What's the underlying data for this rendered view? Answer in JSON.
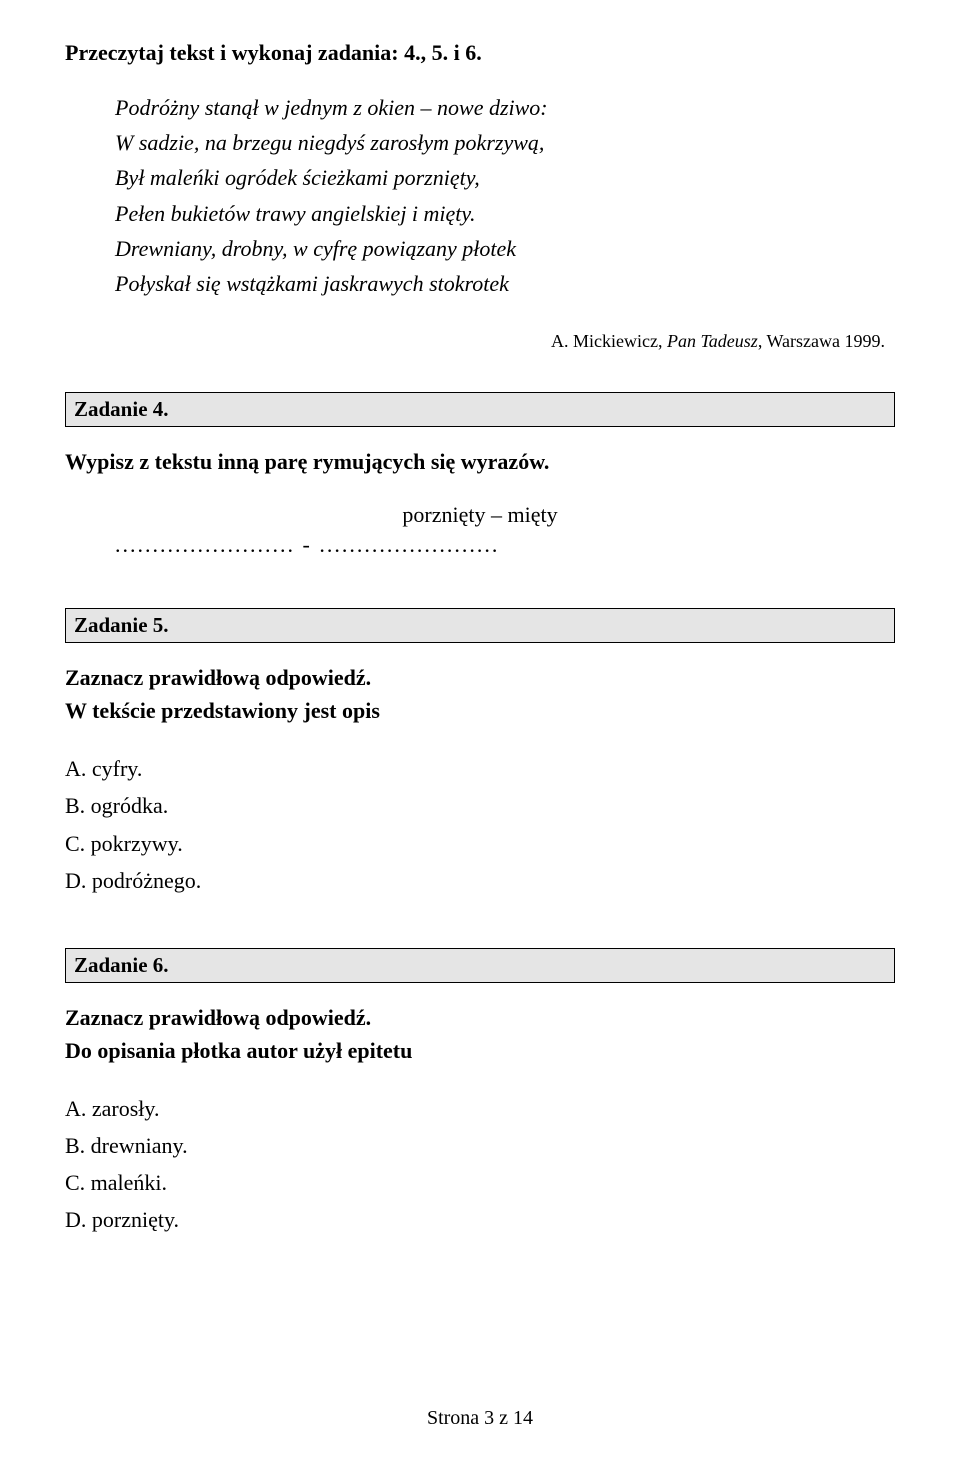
{
  "instruction": "Przeczytaj tekst i wykonaj zadania: 4., 5. i 6.",
  "quote": {
    "line1": "Podróżny stanął w jednym z okien – nowe dziwo:",
    "line2": "W sadzie, na brzegu niegdyś zarosłym pokrzywą,",
    "line3": "Był maleńki ogródek ścieżkami porznięty,",
    "line4": "Pełen bukietów trawy angielskiej i mięty.",
    "line5": "Drewniany, drobny, w cyfrę powiązany płotek",
    "line6": "Połyskał się wstążkami jaskrawych stokrotek"
  },
  "citation": {
    "author": "A. Mickiewicz,",
    "work": "Pan Tadeusz",
    "rest": ", Warszawa 1999."
  },
  "task4": {
    "label": "Zadanie 4.",
    "desc": "Wypisz z tekstu inną parę rymujących się wyrazów.",
    "answer": "porznięty – mięty",
    "dots": "........................ - ........................"
  },
  "task5": {
    "label": "Zadanie 5.",
    "desc1": "Zaznacz prawidłową odpowiedź.",
    "desc2": "W tekście przedstawiony jest opis",
    "options": {
      "a": "A. cyfry.",
      "b": "B. ogródka.",
      "c": "C. pokrzywy.",
      "d": "D. podróżnego."
    }
  },
  "task6": {
    "label": "Zadanie 6.",
    "desc1": "Zaznacz prawidłową odpowiedź.",
    "desc2": "Do opisania płotka autor użył epitetu",
    "options": {
      "a": "A. zarosły.",
      "b": "B. drewniany.",
      "c": "C. maleńki.",
      "d": "D. porznięty."
    }
  },
  "footer": "Strona 3 z 14"
}
